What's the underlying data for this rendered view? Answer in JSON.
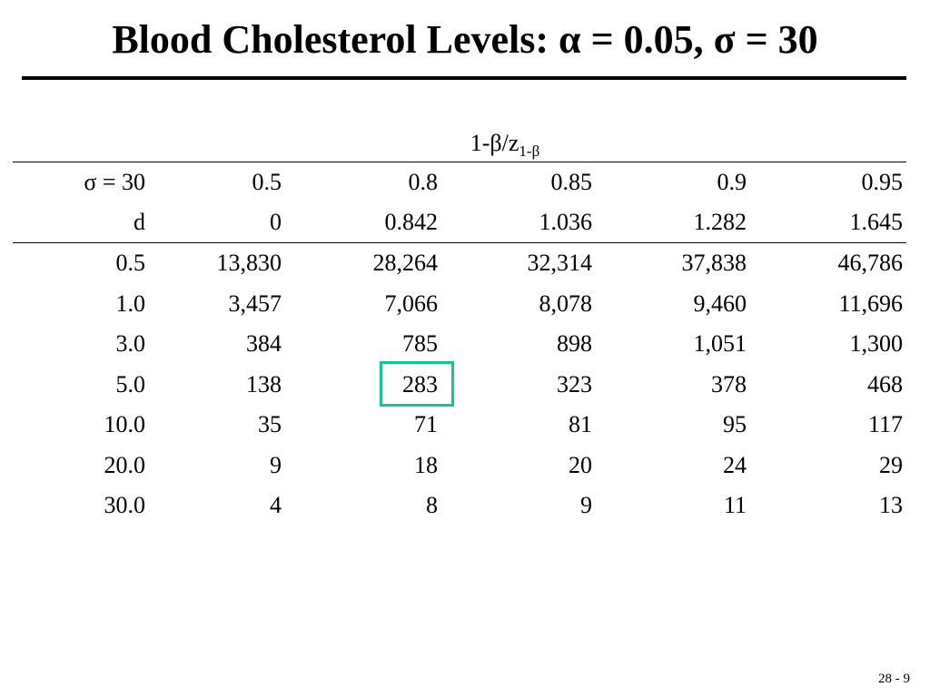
{
  "slide": {
    "title": "Blood Cholesterol Levels: α = 0.05,  σ = 30",
    "header_main": "1-β/z",
    "header_sub": "1-β",
    "page_number": "28 - 9",
    "highlight_color": "#19c39a"
  },
  "table": {
    "header_rows": [
      [
        "σ = 30",
        "0.5",
        "0.8",
        "0.85",
        "0.9",
        "0.95"
      ],
      [
        "d",
        "0",
        "0.842",
        "1.036",
        "1.282",
        "1.645"
      ]
    ],
    "rows": [
      [
        "0.5",
        "13,830",
        "28,264",
        "32,314",
        "37,838",
        "46,786"
      ],
      [
        "1.0",
        "3,457",
        "7,066",
        "8,078",
        "9,460",
        "11,696"
      ],
      [
        "3.0",
        "384",
        "785",
        "898",
        "1,051",
        "1,300"
      ],
      [
        "5.0",
        "138",
        "283",
        "323",
        "378",
        "468"
      ],
      [
        "10.0",
        "35",
        "71",
        "81",
        "95",
        "117"
      ],
      [
        "20.0",
        "9",
        "18",
        "20",
        "24",
        "29"
      ],
      [
        "30.0",
        "4",
        "8",
        "9",
        "11",
        "13"
      ]
    ],
    "highlighted_cell": "283"
  }
}
